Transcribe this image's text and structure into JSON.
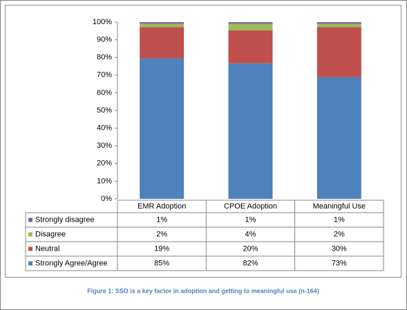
{
  "chart_data": {
    "type": "bar",
    "stacking": "percent",
    "caption": "Figure 1:  SSO is a key factor in adoption and getting to meaningful use (n-164)",
    "categories": [
      "EMR Adoption",
      "CPOE Adoption",
      "Meaningful Use"
    ],
    "series": [
      {
        "name": "Strongly Agree/Agree",
        "color": "#4f81bd",
        "values": [
          85,
          82,
          73
        ],
        "value_labels": [
          "85%",
          "82%",
          "73%"
        ]
      },
      {
        "name": "Neutral",
        "color": "#c0504d",
        "values": [
          19,
          20,
          30
        ],
        "value_labels": [
          "19%",
          "20%",
          "30%"
        ]
      },
      {
        "name": "Disagree",
        "color": "#9bbb59",
        "values": [
          2,
          4,
          2
        ],
        "value_labels": [
          "2%",
          "4%",
          "2%"
        ]
      },
      {
        "name": "Strongly disagree",
        "color": "#8064a2",
        "values": [
          1,
          1,
          1
        ],
        "value_labels": [
          "1%",
          "1%",
          "1%"
        ]
      }
    ],
    "ylim": [
      0,
      100
    ],
    "yticks": [
      {
        "value": 0,
        "label": "0%"
      },
      {
        "value": 10,
        "label": "10%"
      },
      {
        "value": 20,
        "label": "20%"
      },
      {
        "value": 30,
        "label": "30%"
      },
      {
        "value": 40,
        "label": "40%"
      },
      {
        "value": 50,
        "label": "50%"
      },
      {
        "value": 60,
        "label": "60%"
      },
      {
        "value": 70,
        "label": "70%"
      },
      {
        "value": 80,
        "label": "80%"
      },
      {
        "value": 90,
        "label": "90%"
      },
      {
        "value": 100,
        "label": "100%"
      }
    ],
    "grid": false
  }
}
